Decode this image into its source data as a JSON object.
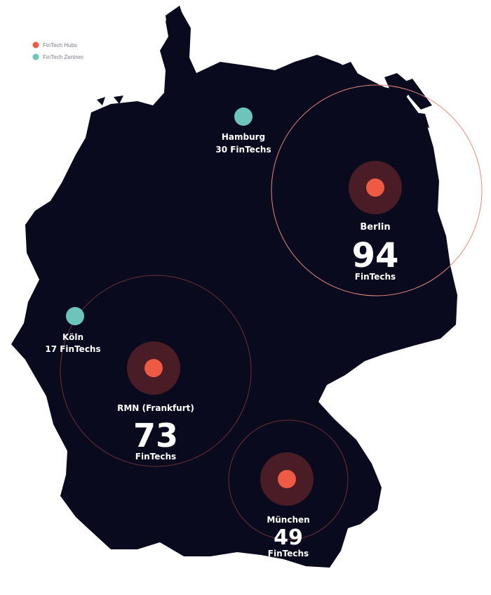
{
  "colors": {
    "land": "#0a0a1f",
    "hub": "#ee5a43",
    "hub_halo": "#4a1c26",
    "hub_ring": "#b84a3c",
    "center": "#6cc4bb",
    "background": "#ffffff"
  },
  "legend": [
    {
      "label": "FinTech Hubs",
      "color": "#ee5a43"
    },
    {
      "label": "FinTech Zentren",
      "color": "#6cc4bb"
    }
  ],
  "hubs": [
    {
      "name": "Berlin",
      "count": "94",
      "unit": "FinTechs"
    },
    {
      "name": "RMN (Frankfurt)",
      "count": "73",
      "unit": "FinTechs"
    },
    {
      "name": "München",
      "count": "49",
      "unit": "FinTechs"
    }
  ],
  "centers": [
    {
      "name": "Hamburg",
      "detail": "30 FinTechs"
    },
    {
      "name": "Köln",
      "detail": "17 FinTechs"
    }
  ]
}
